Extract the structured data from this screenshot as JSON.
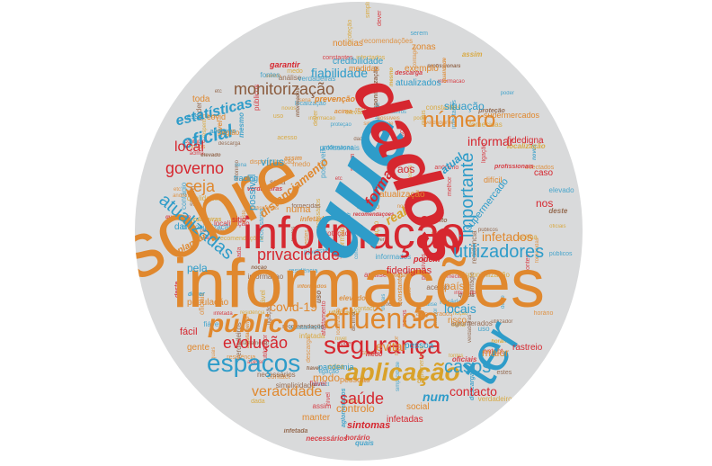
{
  "words": {
    "informacoes": "informações",
    "informacao": "informação",
    "sobre": "sobre",
    "que": "que",
    "dados": "dados",
    "ter": "ter",
    "afluencia": "afluência",
    "seguranca": "segurança",
    "publico": "público",
    "espacos": "espaços",
    "aplicacao": "aplicação",
    "numero": "número",
    "monitorizacao": "monitorização",
    "privacidade": "privacidade",
    "utilizadores": "utilizadores",
    "importante": "importante",
    "casos": "casos",
    "saude": "saúde",
    "evolucao": "evolução",
    "veracidade": "veracidade",
    "atualizadas": "atualizadas",
    "estatisticas": "estatísticas",
    "oficial": "oficial",
    "governo": "governo",
    "local": "local",
    "seja": "seja",
    "fiabilidade": "fiabilidade",
    "informar": "informar",
    "forma": "forma",
    "distanciamento": "distanciamento",
    "infetados": "infetados",
    "locais": "locais",
    "covid19": "covid-19",
    "evitar": "evitar",
    "controlo": "controlo",
    "contacto": "contacto",
    "modo": "modo",
    "num": "num",
    "maior": "maior",
    "atualizacao": "atualização",
    "fidedignas": "fidedignas",
    "situacao": "situação",
    "supermercado": "supermercado",
    "fidedigna": "fidedigna",
    "pais": "país",
    "real": "real",
    "populacao": "população",
    "planear": "planear",
    "virus": "vírus",
    "numa": "numa",
    "aos": "aos",
    "nos": "nos",
    "atual": "atual",
    "caso": "caso",
    "risco": "risco",
    "possivel": "possível",
    "pela": "pela",
    "toda": "toda",
    "noticias": "noticias",
    "credibilidade": "credibilidade",
    "atualizados": "atualizados",
    "exemplo": "exemplo",
    "zonas": "zonas",
    "medidas": "medidas",
    "garantir": "garantir",
    "prevencao": "prevenção",
    "sintomas": "sintomas",
    "manter": "manter",
    "infetadas": "infetadas",
    "pessoa": "pessoa",
    "pessoas": "pessoas",
    "pandemia": "pandemia",
    "facil": "fácil",
    "gente": "gente",
    "podem": "podem",
    "dificil": "difícil",
    "tracing": "tracing",
    "social": "social",
    "rastreio": "rastreio",
    "supermercados": "supermercados",
    "sitio": "sitio",
    "dar": "dar",
    "regiao": "região",
    "covid": "covid",
    "essa": "essa"
  },
  "filler": [
    "constantes",
    "recomendações",
    "utilizador",
    "residência",
    "serem",
    "oficiais",
    "acima",
    "ligação",
    "elevado",
    "profissionais",
    "horário",
    "acesso",
    "públicos",
    "verdadeiros",
    "contágio",
    "localização",
    "noção",
    "fontes",
    "sena",
    "possíveis",
    "mesmo",
    "etc",
    "poder",
    "quais",
    "descarga",
    "nível",
    "dada",
    "proteção",
    "aglomerados",
    "melhor",
    "casa",
    "infetada",
    "informacao",
    "simplicidade",
    "afastamento",
    "contact",
    "fornecidas",
    "verdadeiras",
    "informados",
    "anónimo",
    "qualidade",
    "respeito",
    "necessários",
    "disponibilização",
    "análise",
    "infectados",
    "assim",
    "fiável",
    "estes",
    "deste",
    "novos",
    "medo",
    "dever",
    "uso"
  ],
  "colors": {
    "blue": "#2e9cc9",
    "orange": "#e0882e",
    "red": "#d6272f",
    "gold": "#d9a22a",
    "brown": "#8a5a3c",
    "background": "#d9dadb"
  }
}
